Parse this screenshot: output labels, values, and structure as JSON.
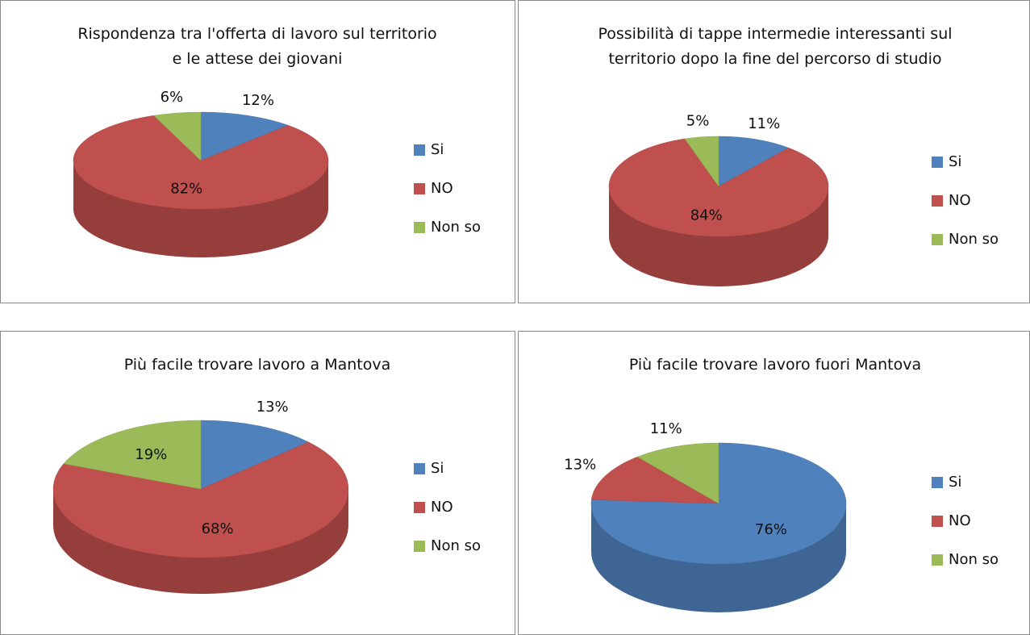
{
  "chart_data": [
    {
      "type": "pie",
      "title": "Rispondenza tra l'offerta di lavoro sul territorio e le attese dei giovani",
      "categories": [
        "Si",
        "NO",
        "Non so"
      ],
      "values": [
        12,
        82,
        6
      ],
      "value_labels": [
        "12%",
        "82%",
        "6%"
      ],
      "colors": [
        "#4f81bd",
        "#c0504d",
        "#9bbb59"
      ],
      "legend": "right"
    },
    {
      "type": "pie",
      "title": "Possibilità di tappe intermedie interessanti sul territorio dopo la fine del percorso di studio",
      "categories": [
        "Si",
        "NO",
        "Non so"
      ],
      "values": [
        11,
        84,
        5
      ],
      "value_labels": [
        "11%",
        "84%",
        "5%"
      ],
      "colors": [
        "#4f81bd",
        "#c0504d",
        "#9bbb59"
      ],
      "legend": "right"
    },
    {
      "type": "pie",
      "title": "Più facile trovare lavoro a Mantova",
      "categories": [
        "Si",
        "NO",
        "Non so"
      ],
      "values": [
        13,
        68,
        19
      ],
      "value_labels": [
        "13%",
        "68%",
        "19%"
      ],
      "colors": [
        "#4f81bd",
        "#c0504d",
        "#9bbb59"
      ],
      "legend": "right"
    },
    {
      "type": "pie",
      "title": "Più facile trovare lavoro fuori Mantova",
      "categories": [
        "Si",
        "NO",
        "Non so"
      ],
      "values": [
        76,
        13,
        11
      ],
      "value_labels": [
        "76%",
        "13%",
        "11%"
      ],
      "colors": [
        "#4f81bd",
        "#c0504d",
        "#9bbb59"
      ],
      "legend": "right"
    }
  ]
}
